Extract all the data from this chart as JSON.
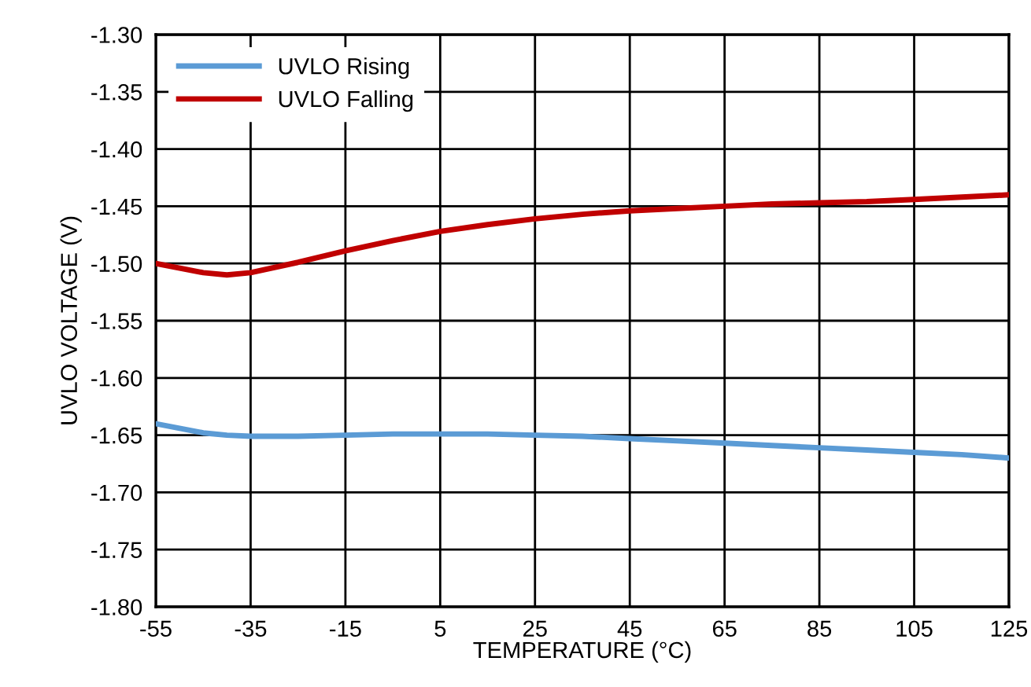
{
  "chart_data": {
    "type": "line",
    "xlabel": "TEMPERATURE (°C)",
    "ylabel": "UVLO VOLTAGE (V)",
    "x": [
      -55,
      -45,
      -40,
      -35,
      -25,
      -15,
      -5,
      5,
      15,
      25,
      35,
      45,
      55,
      65,
      75,
      85,
      95,
      105,
      115,
      125
    ],
    "series": [
      {
        "name": "UVLO Rising",
        "color": "#5b9bd5",
        "values": [
          -1.64,
          -1.648,
          -1.65,
          -1.651,
          -1.651,
          -1.65,
          -1.649,
          -1.649,
          -1.649,
          -1.65,
          -1.651,
          -1.653,
          -1.655,
          -1.657,
          -1.659,
          -1.661,
          -1.663,
          -1.665,
          -1.667,
          -1.67
        ]
      },
      {
        "name": "UVLO Falling",
        "color": "#c00000",
        "values": [
          -1.5,
          -1.508,
          -1.51,
          -1.508,
          -1.499,
          -1.489,
          -1.48,
          -1.472,
          -1.466,
          -1.461,
          -1.457,
          -1.454,
          -1.452,
          -1.45,
          -1.448,
          -1.447,
          -1.446,
          -1.444,
          -1.442,
          -1.44
        ]
      }
    ],
    "xlim": [
      -55,
      125
    ],
    "xticks": [
      -55,
      -35,
      -15,
      5,
      25,
      45,
      65,
      85,
      105,
      125
    ],
    "ylim": [
      -1.8,
      -1.3
    ],
    "yticks": [
      {
        "value": -1.8,
        "label": "-1.80"
      },
      {
        "value": -1.75,
        "label": "-1.75"
      },
      {
        "value": -1.7,
        "label": "-1.70"
      },
      {
        "value": -1.65,
        "label": "-1.65"
      },
      {
        "value": -1.6,
        "label": "-1.60"
      },
      {
        "value": -1.55,
        "label": "-1.55"
      },
      {
        "value": -1.5,
        "label": "-1.50"
      },
      {
        "value": -1.45,
        "label": "-1.45"
      },
      {
        "value": -1.4,
        "label": "-1.40"
      },
      {
        "value": -1.35,
        "label": "-1.35"
      },
      {
        "value": -1.3,
        "label": "-1.30"
      }
    ],
    "grid": true,
    "legend": "top left",
    "marker": "none",
    "line_style": "solid"
  }
}
